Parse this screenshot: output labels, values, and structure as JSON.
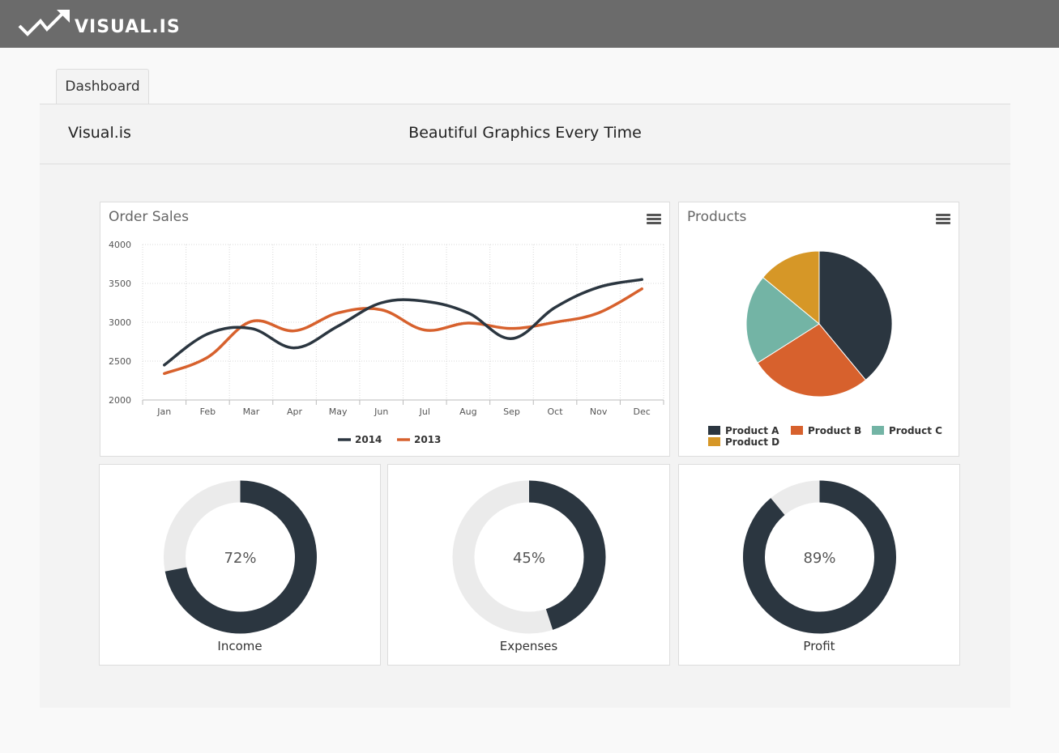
{
  "brand": {
    "logo_text": "VISUAL.IS"
  },
  "tabs": [
    {
      "label": "Dashboard",
      "active": true
    }
  ],
  "header": {
    "brand_title": "Visual.is",
    "tagline": "Beautiful Graphics Every Time"
  },
  "colors": {
    "dark": "#2b3640",
    "orange": "#d7612d",
    "teal": "#73b4a5",
    "gold": "#d69727",
    "track": "#ebebeb"
  },
  "order_sales": {
    "title": "Order Sales",
    "menu_icon": "hamburger-menu-icon",
    "chart_data": {
      "type": "line",
      "categories": [
        "Jan",
        "Feb",
        "Mar",
        "Apr",
        "May",
        "Jun",
        "Jul",
        "Aug",
        "Sep",
        "Oct",
        "Nov",
        "Dec"
      ],
      "ylim": [
        2000,
        4000
      ],
      "yticks": [
        2000,
        2500,
        3000,
        3500,
        4000
      ],
      "grid": true,
      "legend": "bottom",
      "series": [
        {
          "name": "2014",
          "color": "#2b3640",
          "values": [
            2450,
            2850,
            2920,
            2670,
            2950,
            3250,
            3270,
            3120,
            2790,
            3190,
            3450,
            3550
          ]
        },
        {
          "name": "2013",
          "color": "#d7612d",
          "values": [
            2340,
            2550,
            3010,
            2890,
            3120,
            3160,
            2900,
            2990,
            2920,
            3000,
            3120,
            3430
          ]
        }
      ]
    }
  },
  "products": {
    "title": "Products",
    "menu_icon": "hamburger-menu-icon",
    "chart_data": {
      "type": "pie",
      "legend": "bottom",
      "slices": [
        {
          "name": "Product A",
          "value": 39,
          "color": "#2b3640"
        },
        {
          "name": "Product B",
          "value": 27,
          "color": "#d7612d"
        },
        {
          "name": "Product C",
          "value": 20,
          "color": "#73b4a5"
        },
        {
          "name": "Product D",
          "value": 14,
          "color": "#d69727"
        }
      ]
    }
  },
  "kpis": [
    {
      "label": "Income",
      "value": 72,
      "display": "72%"
    },
    {
      "label": "Expenses",
      "value": 45,
      "display": "45%"
    },
    {
      "label": "Profit",
      "value": 89,
      "display": "89%"
    }
  ]
}
